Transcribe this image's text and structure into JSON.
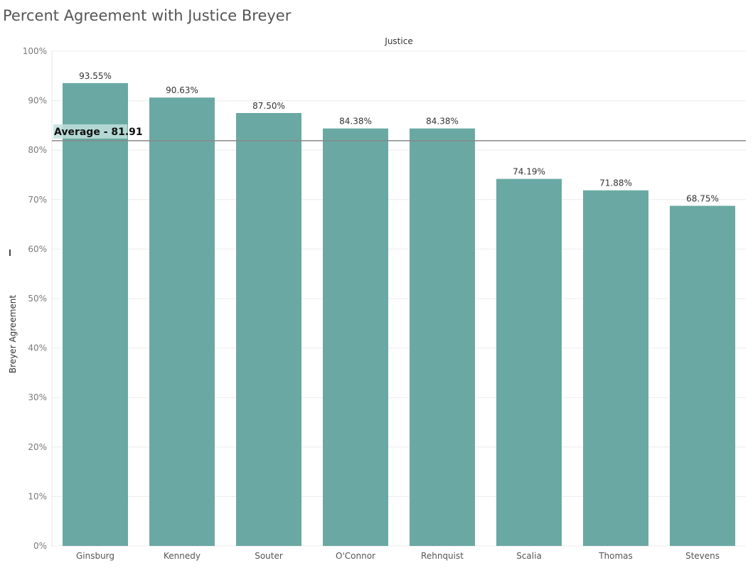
{
  "title": "Percent Agreement with Justice Breyer",
  "colors": {
    "bar": "#6aa9a3",
    "grid": "#ececec",
    "avg_line": "#888888",
    "avg_label_bg": "#bfe0dc"
  },
  "chart_data": {
    "type": "bar",
    "title": "Percent Agreement with Justice Breyer",
    "xlabel": "Justice",
    "ylabel": "Breyer Agreement",
    "ylim": [
      0,
      100
    ],
    "y_ticks": [
      "0%",
      "10%",
      "20%",
      "30%",
      "40%",
      "50%",
      "60%",
      "70%",
      "80%",
      "90%",
      "100%"
    ],
    "categories": [
      "Ginsburg",
      "Kennedy",
      "Souter",
      "O'Connor",
      "Rehnquist",
      "Scalia",
      "Thomas",
      "Stevens"
    ],
    "values": [
      93.55,
      90.63,
      87.5,
      84.38,
      84.38,
      74.19,
      71.88,
      68.75
    ],
    "value_labels": [
      "93.55%",
      "90.63%",
      "87.50%",
      "84.38%",
      "84.38%",
      "74.19%",
      "71.88%",
      "68.75%"
    ],
    "reference_line": {
      "label": "Average - 81.91",
      "value": 81.91
    },
    "grid": true,
    "legend": "none"
  }
}
